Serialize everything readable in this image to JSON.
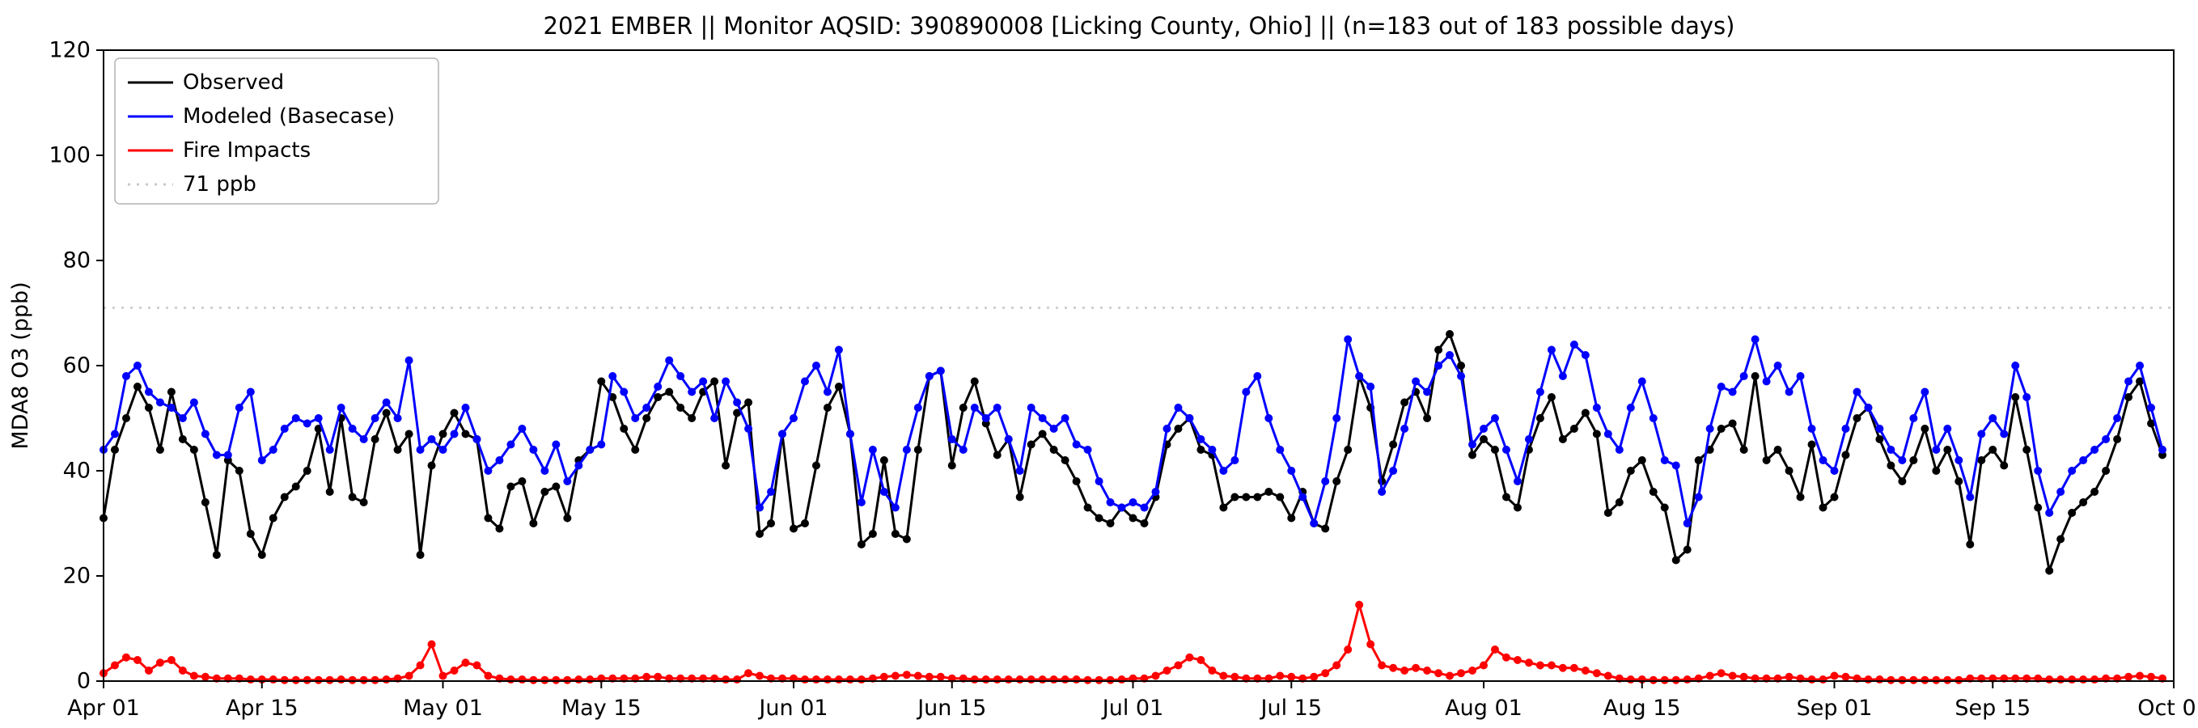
{
  "chart_data": {
    "type": "line",
    "title": "2021 EMBER || Monitor AQSID: 390890008 [Licking County, Ohio] || (n=183 out of 183 possible days)",
    "ylabel": "MDA8 O3 (ppb)",
    "ylim": [
      0,
      120
    ],
    "yticks": [
      0,
      20,
      40,
      60,
      80,
      100,
      120
    ],
    "x_unit": "daily values, Apr 01 - Sep 30, 2021 (day index from Apr 01)",
    "n_days": 183,
    "xlim_days": [
      0,
      183
    ],
    "xticks": [
      {
        "day": 0,
        "label": "Apr 01"
      },
      {
        "day": 14,
        "label": "Apr 15"
      },
      {
        "day": 30,
        "label": "May 01"
      },
      {
        "day": 44,
        "label": "May 15"
      },
      {
        "day": 61,
        "label": "Jun 01"
      },
      {
        "day": 75,
        "label": "Jun 15"
      },
      {
        "day": 91,
        "label": "Jul 01"
      },
      {
        "day": 105,
        "label": "Jul 15"
      },
      {
        "day": 122,
        "label": "Aug 01"
      },
      {
        "day": 136,
        "label": "Aug 15"
      },
      {
        "day": 153,
        "label": "Sep 01"
      },
      {
        "day": 167,
        "label": "Sep 15"
      },
      {
        "day": 183,
        "label": "Oct 01"
      }
    ],
    "grid": false,
    "legend_position": "upper left",
    "threshold": {
      "value": 71,
      "label": "71 ppb",
      "color": "#c8c8c8"
    },
    "series": [
      {
        "name": "Observed",
        "color": "#000000",
        "marker": "circle",
        "values": [
          31,
          44,
          50,
          56,
          52,
          44,
          55,
          46,
          44,
          34,
          24,
          42,
          40,
          28,
          24,
          31,
          35,
          37,
          40,
          48,
          36,
          50,
          35,
          34,
          46,
          51,
          44,
          47,
          24,
          41,
          47,
          51,
          47,
          46,
          31,
          29,
          37,
          38,
          30,
          36,
          37,
          31,
          42,
          44,
          57,
          54,
          48,
          44,
          50,
          54,
          55,
          52,
          50,
          55,
          57,
          41,
          51,
          53,
          28,
          30,
          47,
          29,
          30,
          41,
          52,
          56,
          47,
          26,
          28,
          42,
          28,
          27,
          44,
          58,
          59,
          41,
          52,
          57,
          49,
          43,
          46,
          35,
          45,
          47,
          44,
          42,
          38,
          33,
          31,
          30,
          33,
          31,
          30,
          35,
          45,
          48,
          50,
          44,
          43,
          33,
          35,
          35,
          35,
          36,
          35,
          31,
          36,
          30,
          29,
          38,
          44,
          58,
          52,
          38,
          45,
          53,
          55,
          50,
          63,
          66,
          60,
          43,
          46,
          44,
          35,
          33,
          44,
          50,
          54,
          46,
          48,
          51,
          47,
          32,
          34,
          40,
          42,
          36,
          33,
          23,
          25,
          42,
          44,
          48,
          49,
          44,
          58,
          42,
          44,
          40,
          35,
          45,
          33,
          35,
          43,
          50,
          52,
          46,
          41,
          38,
          42,
          48,
          40,
          44,
          38,
          26,
          42,
          44,
          41,
          54,
          44,
          33,
          21,
          27,
          32,
          34,
          36,
          40,
          46,
          54,
          57,
          49,
          43
        ]
      },
      {
        "name": "Modeled (Basecase)",
        "color": "#0000ff",
        "marker": "circle",
        "values": [
          44,
          47,
          58,
          60,
          55,
          53,
          52,
          50,
          53,
          47,
          43,
          43,
          52,
          55,
          42,
          44,
          48,
          50,
          49,
          50,
          44,
          52,
          48,
          46,
          50,
          53,
          50,
          61,
          44,
          46,
          44,
          47,
          52,
          46,
          40,
          42,
          45,
          48,
          44,
          40,
          45,
          38,
          41,
          44,
          45,
          58,
          55,
          50,
          52,
          56,
          61,
          58,
          55,
          57,
          50,
          57,
          53,
          48,
          33,
          36,
          47,
          50,
          57,
          60,
          55,
          63,
          47,
          34,
          44,
          36,
          33,
          44,
          52,
          58,
          59,
          46,
          44,
          52,
          50,
          52,
          46,
          40,
          52,
          50,
          48,
          50,
          45,
          44,
          38,
          34,
          33,
          34,
          33,
          36,
          48,
          52,
          50,
          46,
          44,
          40,
          42,
          55,
          58,
          50,
          44,
          40,
          35,
          30,
          38,
          50,
          65,
          58,
          56,
          36,
          40,
          48,
          57,
          55,
          60,
          62,
          58,
          45,
          48,
          50,
          44,
          38,
          46,
          55,
          63,
          58,
          64,
          62,
          52,
          47,
          44,
          52,
          57,
          50,
          42,
          41,
          30,
          35,
          48,
          56,
          55,
          58,
          65,
          57,
          60,
          55,
          58,
          48,
          42,
          40,
          48,
          55,
          52,
          48,
          44,
          42,
          50,
          55,
          44,
          48,
          42,
          35,
          47,
          50,
          47,
          60,
          54,
          40,
          32,
          36,
          40,
          42,
          44,
          46,
          50,
          57,
          60,
          52,
          44
        ]
      },
      {
        "name": "Fire Impacts",
        "color": "#ff0000",
        "marker": "circle",
        "values": [
          1.5,
          3,
          4.5,
          4,
          2,
          3.5,
          4,
          2,
          1,
          0.8,
          0.5,
          0.5,
          0.5,
          0.3,
          0.3,
          0.3,
          0.2,
          0.2,
          0.2,
          0.2,
          0.2,
          0.3,
          0.2,
          0.2,
          0.2,
          0.3,
          0.5,
          1,
          3,
          7,
          1,
          2,
          3.5,
          3,
          1,
          0.5,
          0.3,
          0.3,
          0.2,
          0.2,
          0.2,
          0.2,
          0.3,
          0.3,
          0.5,
          0.5,
          0.5,
          0.5,
          0.8,
          0.8,
          0.5,
          0.5,
          0.5,
          0.5,
          0.5,
          0.3,
          0.3,
          1.5,
          1,
          0.5,
          0.5,
          0.5,
          0.3,
          0.3,
          0.3,
          0.3,
          0.3,
          0.3,
          0.5,
          0.8,
          1,
          1.2,
          1,
          0.8,
          0.8,
          0.5,
          0.5,
          0.3,
          0.3,
          0.3,
          0.3,
          0.3,
          0.3,
          0.3,
          0.3,
          0.3,
          0.3,
          0.2,
          0.2,
          0.2,
          0.3,
          0.5,
          0.5,
          1,
          2,
          3,
          4.5,
          4,
          2,
          1,
          0.8,
          0.5,
          0.5,
          0.5,
          1,
          0.8,
          0.5,
          0.8,
          1.5,
          3,
          6,
          14.5,
          7,
          3,
          2.5,
          2,
          2.5,
          2,
          1.5,
          1,
          1.5,
          2,
          3,
          6,
          4.5,
          4,
          3.5,
          3,
          3,
          2.5,
          2.5,
          2,
          1.5,
          1,
          0.5,
          0.3,
          0.3,
          0.2,
          0.2,
          0.2,
          0.3,
          0.5,
          1,
          1.5,
          1,
          0.8,
          0.5,
          0.5,
          0.5,
          0.8,
          0.5,
          0.3,
          0.3,
          1,
          0.8,
          0.5,
          0.3,
          0.3,
          0.2,
          0.2,
          0.2,
          0.2,
          0.2,
          0.2,
          0.2,
          0.5,
          0.5,
          0.5,
          0.5,
          0.5,
          0.5,
          0.5,
          0.3,
          0.3,
          0.3,
          0.3,
          0.3,
          0.5,
          0.5,
          0.8,
          1,
          0.8,
          0.5
        ]
      }
    ]
  }
}
